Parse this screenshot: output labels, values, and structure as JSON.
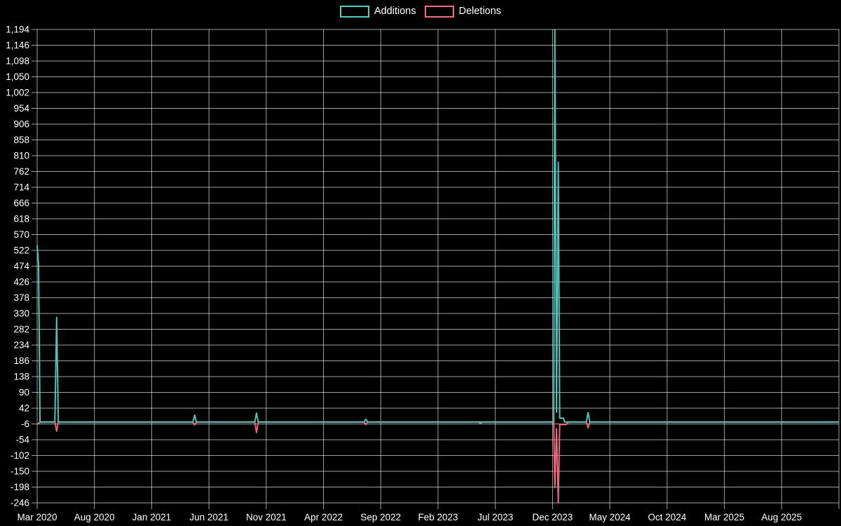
{
  "legend": {
    "items": [
      {
        "label": "Additions",
        "color": "#4ecdc4"
      },
      {
        "label": "Deletions",
        "color": "#fa687f"
      }
    ]
  },
  "colors": {
    "background": "#000000",
    "grid": "#ffffff",
    "text": "#ffffff",
    "additions": "#4ecdc4",
    "deletions": "#fa687f"
  },
  "chart_data": {
    "type": "line",
    "title": "",
    "xlabel": "",
    "ylabel": "",
    "x_axis": {
      "tick_labels": [
        "Mar 2020",
        "Aug 2020",
        "Jan 2021",
        "Jun 2021",
        "Nov 2021",
        "Apr 2022",
        "Sep 2022",
        "Feb 2023",
        "Jul 2023",
        "Dec 2023",
        "May 2024",
        "Oct 2024",
        "Mar 2025",
        "Aug 2025"
      ],
      "months_per_tick": 5,
      "max_months": 70
    },
    "y_axis": {
      "min": -246,
      "max": 1194,
      "tick_step": 48,
      "tick_labels": [
        "1,194",
        "1,146",
        "1,098",
        "1,050",
        "1,002",
        "954",
        "906",
        "858",
        "810",
        "762",
        "714",
        "666",
        "618",
        "570",
        "522",
        "474",
        "426",
        "378",
        "330",
        "282",
        "234",
        "186",
        "138",
        "90",
        "42",
        "-6",
        "-54",
        "-102",
        "-150",
        "-198",
        "-246"
      ]
    },
    "grid": true,
    "legend_position": "top-center",
    "series": [
      {
        "name": "Additions",
        "color": "#4ecdc4",
        "points": [
          [
            0,
            537
          ],
          [
            0.12,
            480
          ],
          [
            0.25,
            0
          ],
          [
            1.55,
            0
          ],
          [
            1.7,
            318
          ],
          [
            1.85,
            0
          ],
          [
            13.6,
            0
          ],
          [
            13.75,
            21
          ],
          [
            13.9,
            0
          ],
          [
            19.0,
            0
          ],
          [
            19.15,
            27
          ],
          [
            19.3,
            0
          ],
          [
            28.55,
            0
          ],
          [
            28.7,
            8
          ],
          [
            28.85,
            0
          ],
          [
            45.1,
            0
          ],
          [
            45.2,
            1194
          ],
          [
            45.35,
            30
          ],
          [
            45.5,
            790
          ],
          [
            45.62,
            12
          ],
          [
            45.95,
            12
          ],
          [
            46.05,
            0
          ],
          [
            47.95,
            0
          ],
          [
            48.1,
            29
          ],
          [
            48.25,
            0
          ],
          [
            70,
            0
          ]
        ]
      },
      {
        "name": "Deletions",
        "color": "#fa687f",
        "points": [
          [
            0,
            -8
          ],
          [
            0.25,
            0
          ],
          [
            1.55,
            0
          ],
          [
            1.7,
            -28
          ],
          [
            1.85,
            0
          ],
          [
            13.6,
            0
          ],
          [
            13.75,
            -9
          ],
          [
            13.9,
            0
          ],
          [
            19.0,
            0
          ],
          [
            19.15,
            -32
          ],
          [
            19.3,
            0
          ],
          [
            28.55,
            0
          ],
          [
            28.7,
            -8
          ],
          [
            28.85,
            0
          ],
          [
            38.55,
            0
          ],
          [
            38.7,
            -4
          ],
          [
            38.85,
            0
          ],
          [
            45.1,
            0
          ],
          [
            45.2,
            -200
          ],
          [
            45.35,
            -20
          ],
          [
            45.5,
            -246
          ],
          [
            45.62,
            -8
          ],
          [
            46.2,
            -8
          ],
          [
            46.35,
            0
          ],
          [
            47.95,
            0
          ],
          [
            48.1,
            -18
          ],
          [
            48.25,
            0
          ],
          [
            70,
            0
          ]
        ]
      }
    ]
  }
}
